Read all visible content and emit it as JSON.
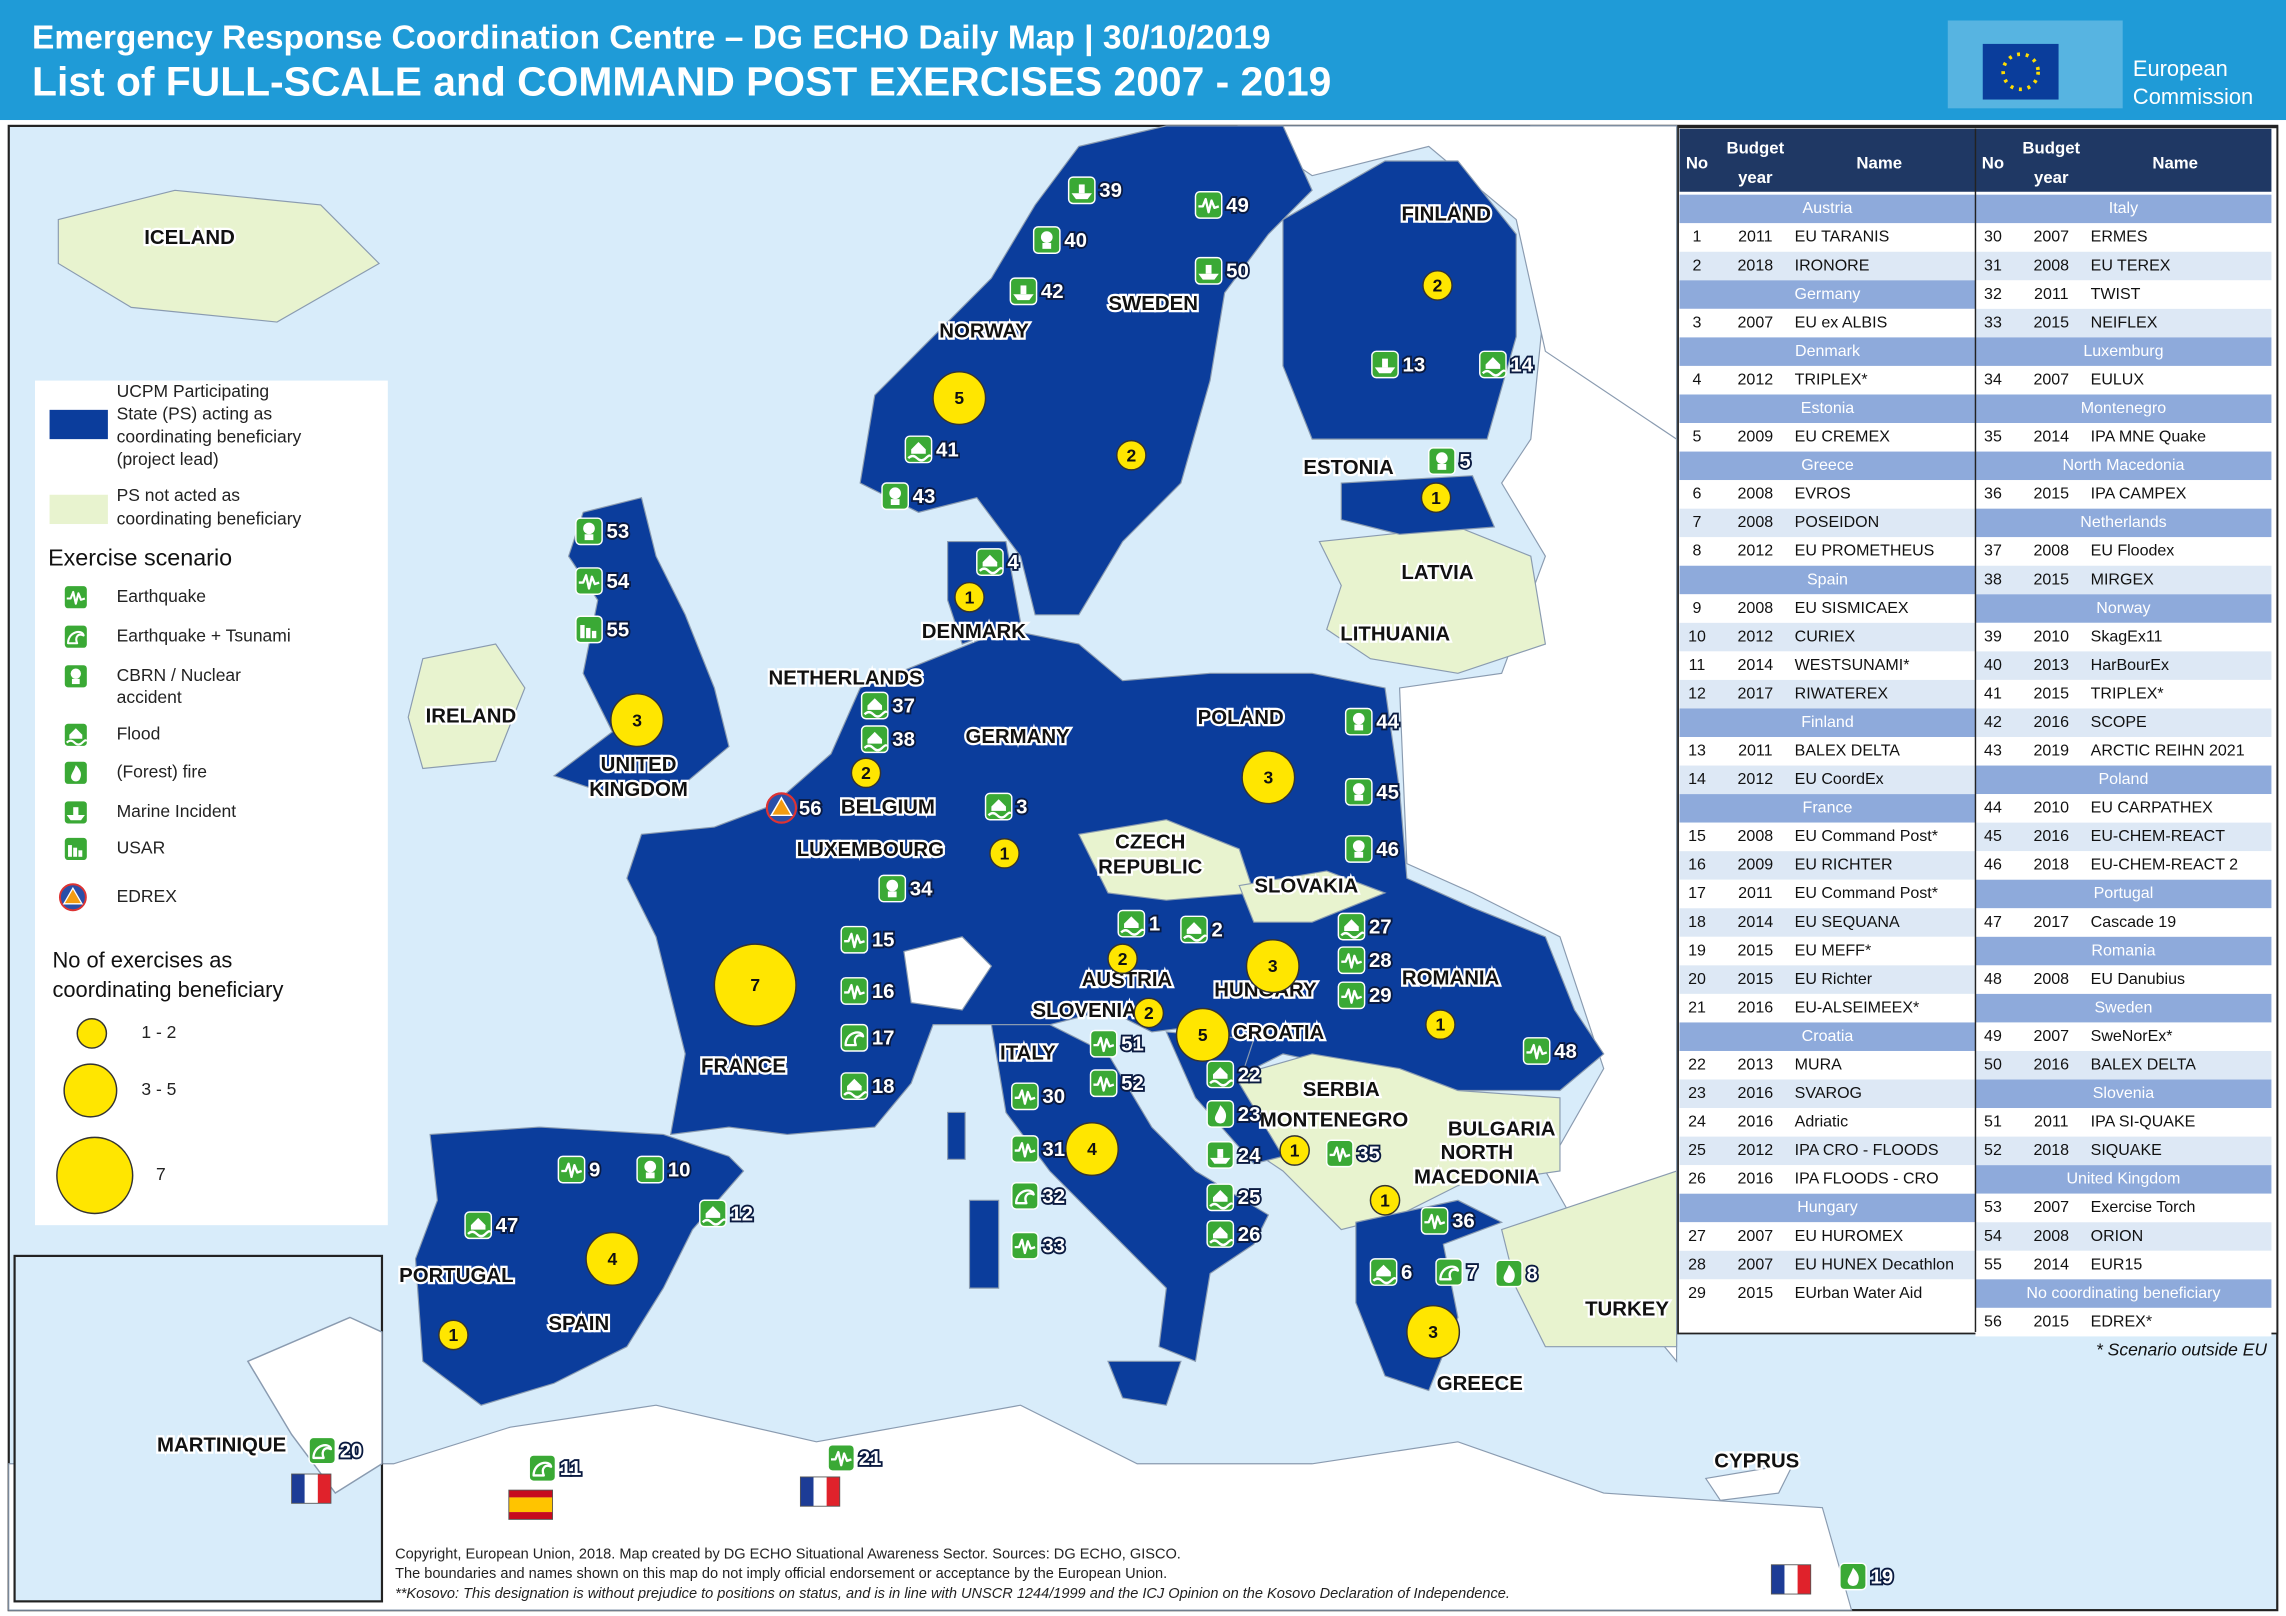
{
  "header": {
    "title": "Emergency Response Coordination Centre – DG ECHO Daily Map | 30/10/2019",
    "subtitle": "List of FULL-SCALE and COMMAND POST EXERCISES 2007 - 2019",
    "logo": [
      "European",
      "Commission"
    ]
  },
  "legend": {
    "ps_acting": [
      "UCPM Participating",
      "State (PS) acting as",
      "coordinating beneficiary",
      "(project lead)"
    ],
    "ps_not": [
      "PS not acted as",
      "coordinating beneficiary"
    ],
    "scenario_title": "Exercise scenario",
    "scenarios": [
      {
        "key": "earthquake",
        "lines": [
          "Earthquake"
        ]
      },
      {
        "key": "tsunami",
        "lines": [
          "Earthquake + Tsunami"
        ]
      },
      {
        "key": "cbrn",
        "lines": [
          "CBRN / Nuclear",
          "accident"
        ]
      },
      {
        "key": "flood",
        "lines": [
          "Flood"
        ]
      },
      {
        "key": "fire",
        "lines": [
          "(Forest) fire"
        ]
      },
      {
        "key": "marine",
        "lines": [
          "Marine Incident"
        ]
      },
      {
        "key": "usar",
        "lines": [
          "USAR"
        ]
      },
      {
        "key": "edrex",
        "lines": [
          "EDREX"
        ]
      }
    ],
    "count_title": [
      "No of exercises as",
      "coordinating beneficiary"
    ],
    "counts": [
      "1 - 2",
      "3 - 5",
      "7"
    ]
  },
  "table": {
    "headers": {
      "no": "No",
      "year": [
        "Budget",
        "year"
      ],
      "name": "Name"
    },
    "columns": [
      [
        {
          "group": "Austria",
          "rows": [
            [
              1,
              2011,
              "EU TARANIS"
            ],
            [
              2,
              2018,
              "IRONORE"
            ]
          ]
        },
        {
          "group": "Germany",
          "rows": [
            [
              3,
              2007,
              "EU ex ALBIS"
            ]
          ]
        },
        {
          "group": "Denmark",
          "rows": [
            [
              4,
              2012,
              "TRIPLEX*"
            ]
          ]
        },
        {
          "group": "Estonia",
          "rows": [
            [
              5,
              2009,
              "EU CREMEX"
            ]
          ]
        },
        {
          "group": "Greece",
          "rows": [
            [
              6,
              2008,
              "EVROS"
            ],
            [
              7,
              2008,
              "POSEIDON"
            ],
            [
              8,
              2012,
              "EU PROMETHEUS"
            ]
          ]
        },
        {
          "group": "Spain",
          "rows": [
            [
              9,
              2008,
              "EU SISMICAEX"
            ],
            [
              10,
              2012,
              "CURIEX"
            ],
            [
              11,
              2014,
              "WESTSUNAMI*"
            ],
            [
              12,
              2017,
              "RIWATEREX"
            ]
          ]
        },
        {
          "group": "Finland",
          "rows": [
            [
              13,
              2011,
              "BALEX DELTA"
            ],
            [
              14,
              2012,
              "EU CoordEx"
            ]
          ]
        },
        {
          "group": "France",
          "rows": [
            [
              15,
              2008,
              "EU Command Post*"
            ],
            [
              16,
              2009,
              "EU RICHTER"
            ],
            [
              17,
              2011,
              "EU Command Post*"
            ],
            [
              18,
              2014,
              "EU SEQUANA"
            ],
            [
              19,
              2015,
              "EU MEFF*"
            ],
            [
              20,
              2015,
              "EU Richter"
            ],
            [
              21,
              2016,
              "EU-ALSEIMEEX*"
            ]
          ]
        },
        {
          "group": "Croatia",
          "rows": [
            [
              22,
              2013,
              "MURA"
            ],
            [
              23,
              2016,
              "SVAROG"
            ],
            [
              24,
              2016,
              "Adriatic"
            ],
            [
              25,
              2012,
              "IPA CRO - FLOODS"
            ],
            [
              26,
              2016,
              "IPA FLOODS - CRO"
            ]
          ]
        },
        {
          "group": "Hungary",
          "rows": [
            [
              27,
              2007,
              "EU HUROMEX"
            ],
            [
              28,
              2007,
              "EU HUNEX Decathlon"
            ],
            [
              29,
              2015,
              "EUrban Water Aid"
            ]
          ]
        }
      ],
      [
        {
          "group": "Italy",
          "rows": [
            [
              30,
              2007,
              "ERMES"
            ],
            [
              31,
              2008,
              "EU TEREX"
            ],
            [
              32,
              2011,
              "TWIST"
            ],
            [
              33,
              2015,
              "NEIFLEX"
            ]
          ]
        },
        {
          "group": "Luxemburg",
          "rows": [
            [
              34,
              2007,
              "EULUX"
            ]
          ]
        },
        {
          "group": "Montenegro",
          "rows": [
            [
              35,
              2014,
              "IPA MNE Quake"
            ]
          ]
        },
        {
          "group": "North Macedonia",
          "rows": [
            [
              36,
              2015,
              "IPA CAMPEX"
            ]
          ]
        },
        {
          "group": "Netherlands",
          "rows": [
            [
              37,
              2008,
              "EU Floodex"
            ],
            [
              38,
              2015,
              "MIRGEX"
            ]
          ]
        },
        {
          "group": "Norway",
          "rows": [
            [
              39,
              2010,
              "SkagEx11"
            ],
            [
              40,
              2013,
              "HarBourEx"
            ],
            [
              41,
              2015,
              "TRIPLEX*"
            ],
            [
              42,
              2016,
              "SCOPE"
            ],
            [
              43,
              2019,
              "ARCTIC REIHN 2021"
            ]
          ]
        },
        {
          "group": "Poland",
          "rows": [
            [
              44,
              2010,
              "EU CARPATHEX"
            ],
            [
              45,
              2016,
              "EU-CHEM-REACT"
            ],
            [
              46,
              2018,
              "EU-CHEM-REACT 2"
            ]
          ]
        },
        {
          "group": "Portugal",
          "rows": [
            [
              47,
              2017,
              "Cascade 19"
            ]
          ]
        },
        {
          "group": "Romania",
          "rows": [
            [
              48,
              2008,
              "EU Danubius"
            ]
          ]
        },
        {
          "group": "Sweden",
          "rows": [
            [
              49,
              2007,
              "SweNorEx*"
            ],
            [
              50,
              2016,
              "BALEX DELTA"
            ]
          ]
        },
        {
          "group": "Slovenia",
          "rows": [
            [
              51,
              2011,
              "IPA SI-QUAKE"
            ],
            [
              52,
              2018,
              "SIQUAKE"
            ]
          ]
        },
        {
          "group": "United Kingdom",
          "rows": [
            [
              53,
              2007,
              "Exercise Torch"
            ],
            [
              54,
              2008,
              "ORION"
            ],
            [
              55,
              2014,
              "EUR15"
            ]
          ]
        },
        {
          "group": "No coordinating beneficiary",
          "rows": [
            [
              56,
              2015,
              "EDREX*"
            ]
          ]
        }
      ]
    ],
    "footnote": "* Scenario outside EU"
  },
  "countries": [
    [
      "ICELAND"
    ],
    [
      "FINLAND"
    ],
    [
      "SWEDEN"
    ],
    [
      "NORWAY"
    ],
    [
      "ESTONIA"
    ],
    [
      "LATVIA"
    ],
    [
      "LITHUANIA"
    ],
    [
      "DENMARK"
    ],
    [
      "NETHERLANDS"
    ],
    [
      "IRELAND"
    ],
    [
      "GERMANY"
    ],
    [
      "POLAND"
    ],
    [
      "UNITED",
      "KINGDOM"
    ],
    [
      "BELGIUM"
    ],
    [
      "LUXEMBOURG"
    ],
    [
      "CZECH",
      "REPUBLIC"
    ],
    [
      "SLOVAKIA"
    ],
    [
      "ROMANIA"
    ],
    [
      "AUSTRIA"
    ],
    [
      "HUNGARY"
    ],
    [
      "SLOVENIA"
    ],
    [
      "CROATIA"
    ],
    [
      "ITALY"
    ],
    [
      "FRANCE"
    ],
    [
      "SERBIA"
    ],
    [
      "BULGARIA"
    ],
    [
      "MONTENEGRO"
    ],
    [
      "NORTH",
      "MACEDONIA"
    ],
    [
      "PORTUGAL"
    ],
    [
      "SPAIN"
    ],
    [
      "TURKEY"
    ],
    [
      "GREECE"
    ],
    [
      "CYPRUS"
    ],
    [
      "MARTINIQUE"
    ]
  ],
  "exercises": [
    {
      "no": 1,
      "scenario": "flood"
    },
    {
      "no": 2,
      "scenario": "flood"
    },
    {
      "no": 3,
      "scenario": "flood"
    },
    {
      "no": 4,
      "scenario": "flood"
    },
    {
      "no": 5,
      "scenario": "cbrn"
    },
    {
      "no": 6,
      "scenario": "flood"
    },
    {
      "no": 7,
      "scenario": "tsunami"
    },
    {
      "no": 8,
      "scenario": "fire"
    },
    {
      "no": 9,
      "scenario": "earthquake"
    },
    {
      "no": 10,
      "scenario": "cbrn"
    },
    {
      "no": 11,
      "scenario": "tsunami"
    },
    {
      "no": 12,
      "scenario": "flood"
    },
    {
      "no": 13,
      "scenario": "marine"
    },
    {
      "no": 14,
      "scenario": "flood"
    },
    {
      "no": 15,
      "scenario": "earthquake"
    },
    {
      "no": 16,
      "scenario": "earthquake"
    },
    {
      "no": 17,
      "scenario": "tsunami"
    },
    {
      "no": 18,
      "scenario": "flood"
    },
    {
      "no": 19,
      "scenario": "fire"
    },
    {
      "no": 20,
      "scenario": "tsunami"
    },
    {
      "no": 21,
      "scenario": "earthquake"
    },
    {
      "no": 22,
      "scenario": "flood"
    },
    {
      "no": 23,
      "scenario": "fire"
    },
    {
      "no": 24,
      "scenario": "marine"
    },
    {
      "no": 25,
      "scenario": "flood"
    },
    {
      "no": 26,
      "scenario": "flood"
    },
    {
      "no": 27,
      "scenario": "flood"
    },
    {
      "no": 28,
      "scenario": "earthquake"
    },
    {
      "no": 29,
      "scenario": "earthquake"
    },
    {
      "no": 30,
      "scenario": "earthquake"
    },
    {
      "no": 31,
      "scenario": "earthquake"
    },
    {
      "no": 32,
      "scenario": "tsunami"
    },
    {
      "no": 33,
      "scenario": "earthquake"
    },
    {
      "no": 34,
      "scenario": "cbrn"
    },
    {
      "no": 35,
      "scenario": "earthquake"
    },
    {
      "no": 36,
      "scenario": "earthquake"
    },
    {
      "no": 37,
      "scenario": "flood"
    },
    {
      "no": 38,
      "scenario": "flood"
    },
    {
      "no": 39,
      "scenario": "marine"
    },
    {
      "no": 40,
      "scenario": "cbrn"
    },
    {
      "no": 41,
      "scenario": "flood"
    },
    {
      "no": 42,
      "scenario": "marine"
    },
    {
      "no": 43,
      "scenario": "cbrn"
    },
    {
      "no": 44,
      "scenario": "cbrn"
    },
    {
      "no": 45,
      "scenario": "cbrn"
    },
    {
      "no": 46,
      "scenario": "cbrn"
    },
    {
      "no": 47,
      "scenario": "flood"
    },
    {
      "no": 48,
      "scenario": "earthquake"
    },
    {
      "no": 49,
      "scenario": "earthquake"
    },
    {
      "no": 50,
      "scenario": "marine"
    },
    {
      "no": 51,
      "scenario": "earthquake"
    },
    {
      "no": 52,
      "scenario": "earthquake"
    },
    {
      "no": 53,
      "scenario": "cbrn"
    },
    {
      "no": 54,
      "scenario": "earthquake"
    },
    {
      "no": 55,
      "scenario": "usar"
    },
    {
      "no": 56,
      "scenario": "edrex"
    }
  ],
  "circle_counts": [
    2,
    5,
    2,
    1,
    1,
    3,
    2,
    1,
    3,
    7,
    2,
    3,
    2,
    5,
    1,
    4,
    1,
    4,
    1,
    1,
    3
  ],
  "copyright": [
    "Copyright, European Union, 2018. Map created by DG ECHO Situational Awareness Sector.  Sources: DG ECHO, GISCO.",
    "The boundaries and names shown on this map do not imply official endorsement or acceptance by the European Union.",
    "**Kosovo: This designation is without prejudice to positions on status, and is in line with UNSCR 1244/1999 and the ICJ Opinion on the Kosovo Declaration of Independence."
  ]
}
